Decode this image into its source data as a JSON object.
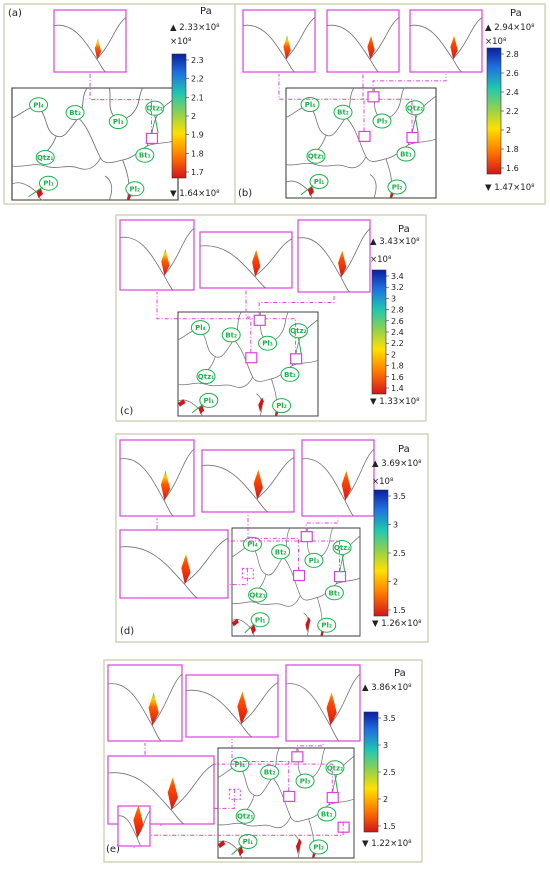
{
  "colorbar": {
    "colors": [
      "#d4141a",
      "#ff7a00",
      "#ffe000",
      "#8fd14f",
      "#20c8b0",
      "#1f6fe0",
      "#0a1fa0"
    ]
  },
  "panels": [
    {
      "id": "a",
      "label": "(a)",
      "unit": "Pa",
      "max_label": "▲ 2.33×10⁸",
      "min_label": "▼ 1.64×10⁸",
      "exponent": "×10⁸",
      "ticks": [
        "2.3",
        "2.2",
        "2.1",
        "2",
        "1.9",
        "1.8",
        "1.7"
      ]
    },
    {
      "id": "b",
      "label": "(b)",
      "unit": "Pa",
      "max_label": "▲ 2.94×10⁸",
      "min_label": "▼ 1.47×10⁸",
      "exponent": "×10⁸",
      "ticks": [
        "2.8",
        "2.6",
        "2.4",
        "2.2",
        "2",
        "1.8",
        "1.6"
      ]
    },
    {
      "id": "c",
      "label": "(c)",
      "unit": "Pa",
      "max_label": "▲ 3.43×10⁸",
      "min_label": "▼ 1.33×10⁸",
      "exponent": "×10⁸",
      "ticks": [
        "3.4",
        "3.2",
        "3",
        "2.8",
        "2.6",
        "2.4",
        "2.2",
        "2",
        "1.8",
        "1.6",
        "1.4"
      ]
    },
    {
      "id": "d",
      "label": "(d)",
      "unit": "Pa",
      "max_label": "▲ 3.69×10⁸",
      "min_label": "▼ 1.26×10⁸",
      "exponent": "×10⁸",
      "ticks": [
        "3.5",
        "3",
        "2.5",
        "2",
        "1.5"
      ]
    },
    {
      "id": "e",
      "label": "(e)",
      "unit": "Pa",
      "max_label": "▲ 3.86×10⁸",
      "min_label": "▼ 1.22×10⁸",
      "exponent": "",
      "ticks": [
        "3.5",
        "3",
        "2.5",
        "2",
        "1.5"
      ]
    }
  ],
  "minerals": {
    "Pl4": "Pl₄",
    "Bt2": "Bt₂",
    "Pl3": "Pl₃",
    "Qtz2": "Qtz₂",
    "Qtz1": "Qtz₁",
    "Bt1": "Bt₁",
    "Pl1": "Pl₁",
    "Pl2": "Pl₂"
  }
}
